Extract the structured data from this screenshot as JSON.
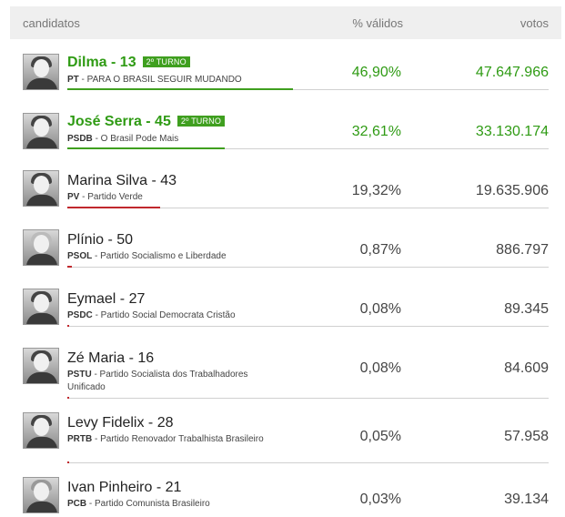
{
  "header": {
    "candidates": "candidatos",
    "pct": "% válidos",
    "votes": "votos"
  },
  "colors": {
    "lead_green": "#2f9b14",
    "bar_green": "#3f9f1f",
    "bar_red": "#c0282d",
    "header_bg": "#efefef"
  },
  "candidates": [
    {
      "name": "Dilma - 13",
      "badge": "2º TURNO",
      "party_abbr": "PT",
      "party_rest": " - PARA O BRASIL SEGUIR MUDANDO",
      "pct": "46,90%",
      "votes": "47.647.966",
      "share": 0.469
    },
    {
      "name": "José Serra - 45",
      "badge": "2º TURNO",
      "party_abbr": "PSDB",
      "party_rest": " - O Brasil Pode Mais",
      "pct": "32,61%",
      "votes": "33.130.174",
      "share": 0.3261
    },
    {
      "name": "Marina Silva - 43",
      "badge": "",
      "party_abbr": "PV",
      "party_rest": " - Partido Verde",
      "pct": "19,32%",
      "votes": "19.635.906",
      "share": 0.1932
    },
    {
      "name": "Plínio - 50",
      "badge": "",
      "party_abbr": "PSOL",
      "party_rest": " - Partido Socialismo e Liberdade",
      "pct": "0,87%",
      "votes": "886.797",
      "share": 0.0087
    },
    {
      "name": "Eymael - 27",
      "badge": "",
      "party_abbr": "PSDC",
      "party_rest": " - Partido Social Democrata Cristão",
      "pct": "0,08%",
      "votes": "89.345",
      "share": 0.0008
    },
    {
      "name": "Zé Maria - 16",
      "badge": "",
      "party_abbr": "PSTU",
      "party_rest": " - Partido Socialista dos Trabalhadores Unificado",
      "pct": "0,08%",
      "votes": "84.609",
      "share": 0.0008
    },
    {
      "name": "Levy Fidelix - 28",
      "badge": "",
      "party_abbr": "PRTB",
      "party_rest": " - Partido Renovador Trabalhista Brasileiro",
      "pct": "0,05%",
      "votes": "57.958",
      "share": 0.0005
    },
    {
      "name": "Ivan Pinheiro - 21",
      "badge": "",
      "party_abbr": "PCB",
      "party_rest": " - Partido Comunista Brasileiro",
      "pct": "0,03%",
      "votes": "39.134",
      "share": 0.0003
    }
  ]
}
